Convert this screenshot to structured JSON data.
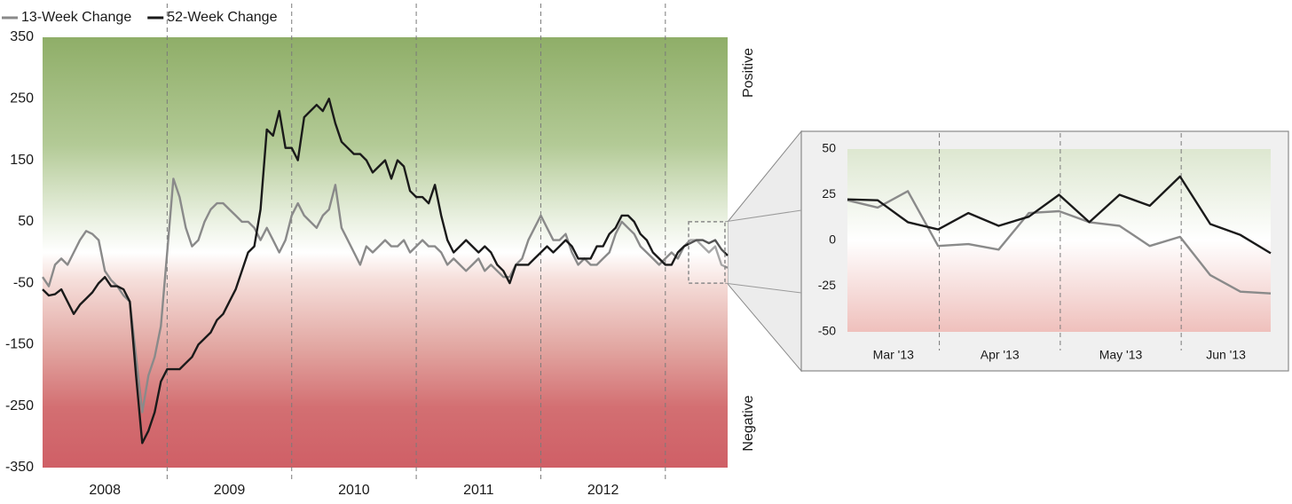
{
  "chart_data": [
    {
      "type": "line",
      "categories": [
        "2008",
        "2009",
        "2010",
        "2011",
        "2012",
        null
      ],
      "x": [
        2008.0,
        2008.05,
        2008.1,
        2008.15,
        2008.2,
        2008.25,
        2008.3,
        2008.35,
        2008.4,
        2008.45,
        2008.5,
        2008.55,
        2008.6,
        2008.65,
        2008.7,
        2008.75,
        2008.8,
        2008.85,
        2008.9,
        2008.95,
        2009.0,
        2009.05,
        2009.1,
        2009.15,
        2009.2,
        2009.25,
        2009.3,
        2009.35,
        2009.4,
        2009.45,
        2009.5,
        2009.55,
        2009.6,
        2009.65,
        2009.7,
        2009.75,
        2009.8,
        2009.85,
        2009.9,
        2009.95,
        2010.0,
        2010.05,
        2010.1,
        2010.15,
        2010.2,
        2010.25,
        2010.3,
        2010.35,
        2010.4,
        2010.45,
        2010.5,
        2010.55,
        2010.6,
        2010.65,
        2010.7,
        2010.75,
        2010.8,
        2010.85,
        2010.9,
        2010.95,
        2011.0,
        2011.05,
        2011.1,
        2011.15,
        2011.2,
        2011.25,
        2011.3,
        2011.35,
        2011.4,
        2011.45,
        2011.5,
        2011.55,
        2011.6,
        2011.65,
        2011.7,
        2011.75,
        2011.8,
        2011.85,
        2011.9,
        2011.95,
        2012.0,
        2012.05,
        2012.1,
        2012.15,
        2012.2,
        2012.25,
        2012.3,
        2012.35,
        2012.4,
        2012.45,
        2012.5,
        2012.55,
        2012.6,
        2012.65,
        2012.7,
        2012.75,
        2012.8,
        2012.85,
        2012.9,
        2012.95,
        2013.0,
        2013.05,
        2013.1,
        2013.15,
        2013.2,
        2013.25,
        2013.3,
        2013.35,
        2013.4,
        2013.45,
        2013.5
      ],
      "series": [
        {
          "name": "13-Week Change",
          "color": "#8a8a8a",
          "values": [
            -40,
            -55,
            -20,
            -10,
            -20,
            0,
            20,
            35,
            30,
            20,
            -30,
            -45,
            -55,
            -70,
            -80,
            -170,
            -260,
            -200,
            -170,
            -120,
            0,
            120,
            90,
            40,
            10,
            20,
            50,
            70,
            80,
            80,
            70,
            60,
            50,
            50,
            40,
            20,
            40,
            20,
            0,
            20,
            60,
            80,
            60,
            50,
            40,
            60,
            70,
            110,
            40,
            20,
            0,
            -20,
            10,
            0,
            10,
            20,
            10,
            10,
            20,
            0,
            10,
            20,
            10,
            10,
            0,
            -20,
            -10,
            -20,
            -30,
            -20,
            -10,
            -30,
            -20,
            -30,
            -40,
            -40,
            -20,
            -10,
            20,
            40,
            60,
            40,
            20,
            20,
            30,
            0,
            -20,
            -10,
            -20,
            -20,
            -10,
            0,
            30,
            50,
            40,
            30,
            10,
            0,
            -10,
            -20,
            -10,
            0,
            -10,
            10,
            20,
            20,
            10,
            0,
            10,
            -20,
            -25
          ]
        },
        {
          "name": "52-Week Change",
          "color": "#1a1a1a",
          "values": [
            -60,
            -70,
            -68,
            -60,
            -80,
            -100,
            -85,
            -75,
            -65,
            -50,
            -40,
            -55,
            -55,
            -60,
            -80,
            -200,
            -310,
            -290,
            -260,
            -210,
            -190,
            -190,
            -190,
            -180,
            -170,
            -150,
            -140,
            -130,
            -110,
            -100,
            -80,
            -60,
            -30,
            0,
            10,
            70,
            200,
            190,
            230,
            170,
            170,
            150,
            220,
            230,
            240,
            230,
            250,
            210,
            180,
            170,
            160,
            160,
            150,
            130,
            140,
            150,
            120,
            150,
            140,
            100,
            90,
            90,
            80,
            110,
            60,
            20,
            0,
            10,
            20,
            10,
            0,
            10,
            0,
            -20,
            -30,
            -50,
            -20,
            -20,
            -20,
            -10,
            0,
            10,
            0,
            10,
            20,
            10,
            -10,
            -10,
            -10,
            10,
            10,
            30,
            40,
            60,
            60,
            50,
            30,
            20,
            0,
            -10,
            -20,
            -20,
            0,
            10,
            15,
            20,
            20,
            15,
            20,
            5,
            -5
          ]
        }
      ],
      "xlim": [
        2008,
        2013.5
      ],
      "xticks": [
        2009,
        2010,
        2011,
        2012,
        2013
      ],
      "ylim": [
        -350,
        350
      ],
      "yticks": [
        -350,
        -250,
        -150,
        -50,
        50,
        150,
        250,
        350
      ],
      "legend": "top-left",
      "annotations": [
        "Positive",
        "Negative"
      ]
    },
    {
      "type": "line",
      "categories": [
        "Mar '13",
        "Apr '13",
        "May '13",
        "Jun '13"
      ],
      "x": [
        3.24,
        3.49,
        3.74,
        3.99,
        4.24,
        4.49,
        4.74,
        4.99,
        5.24,
        5.49,
        5.74,
        5.99,
        6.24,
        6.49,
        6.74
      ],
      "series": [
        {
          "color": "#8a8a8a",
          "values": [
            22,
            18,
            27,
            -3,
            -2,
            -5,
            15,
            16,
            10,
            8,
            -3,
            2,
            -19,
            -28,
            -29
          ]
        },
        {
          "color": "#1a1a1a",
          "values": [
            22.5,
            22,
            10,
            6,
            15,
            8,
            13,
            25,
            10,
            25,
            19,
            35,
            9,
            3,
            -7
          ]
        }
      ],
      "xlim": [
        3.24,
        6.74
      ],
      "xticks": [
        4,
        5,
        6
      ],
      "ylim": [
        -50,
        50
      ],
      "yticks": [
        -50,
        -25,
        0,
        25,
        50
      ]
    }
  ]
}
